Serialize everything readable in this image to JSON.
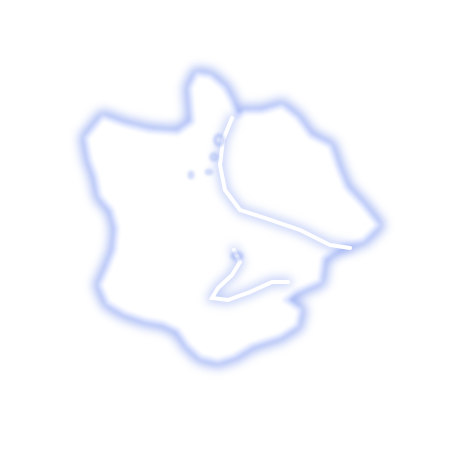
{
  "scene": {
    "subject": "glowing-blob-outline",
    "glow_color": "#8aa2f0",
    "core_color": "#dfe6ff",
    "fill_color": "#ffffff",
    "background_color": "#ffffff"
  }
}
